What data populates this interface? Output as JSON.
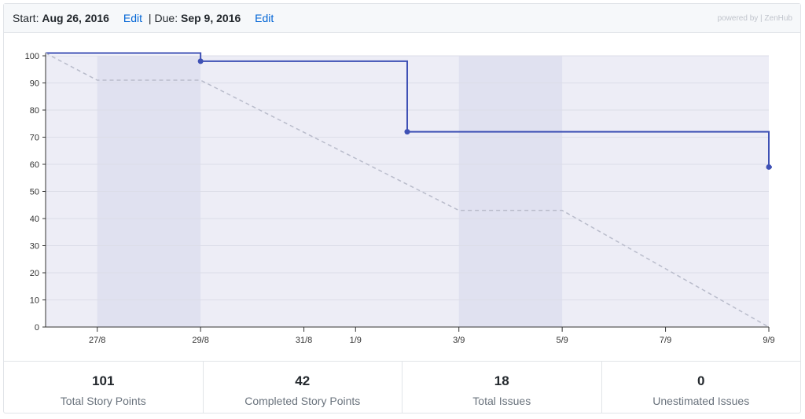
{
  "header": {
    "start_label": "Start:",
    "start_date": "Aug 26, 2016",
    "start_edit": "Edit",
    "separator": "|",
    "due_label": "Due:",
    "due_date": "Sep 9, 2016",
    "due_edit": "Edit",
    "powered_by": "powered by | ZenHub"
  },
  "chart_data": {
    "type": "line",
    "title": "",
    "xlabel": "",
    "ylabel": "",
    "x_start": "2016-08-26",
    "x_end": "2016-09-09",
    "ylim": [
      0,
      100
    ],
    "yticks": [
      0,
      10,
      20,
      30,
      40,
      50,
      60,
      70,
      80,
      90,
      100
    ],
    "x_ticks": [
      {
        "label": "27/8",
        "date": "2016-08-27"
      },
      {
        "label": "29/8",
        "date": "2016-08-29"
      },
      {
        "label": "31/8",
        "date": "2016-08-31"
      },
      {
        "label": "1/9",
        "date": "2016-09-01"
      },
      {
        "label": "3/9",
        "date": "2016-09-03"
      },
      {
        "label": "5/9",
        "date": "2016-09-05"
      },
      {
        "label": "7/9",
        "date": "2016-09-07"
      },
      {
        "label": "9/9",
        "date": "2016-09-09"
      }
    ],
    "weekend_bands": [
      {
        "from": "2016-08-27",
        "to": "2016-08-29"
      },
      {
        "from": "2016-09-03",
        "to": "2016-09-05"
      }
    ],
    "grid": true,
    "series": [
      {
        "kind": "remaining",
        "style": "step",
        "color": "#3f51b5",
        "points": [
          {
            "date": "2016-08-26",
            "value": 101
          },
          {
            "date": "2016-08-29",
            "value": 98
          },
          {
            "date": "2016-09-02",
            "value": 72
          },
          {
            "date": "2016-09-09",
            "value": 59
          }
        ]
      },
      {
        "kind": "ideal",
        "style": "dashed",
        "color": "#b9bccb",
        "points": [
          {
            "date": "2016-08-26",
            "value": 101
          },
          {
            "date": "2016-08-27",
            "value": 91
          },
          {
            "date": "2016-08-29",
            "value": 91
          },
          {
            "date": "2016-09-03",
            "value": 43
          },
          {
            "date": "2016-09-05",
            "value": 43
          },
          {
            "date": "2016-09-09",
            "value": 0
          }
        ]
      }
    ]
  },
  "stats": [
    {
      "value": "101",
      "label": "Total Story Points"
    },
    {
      "value": "42",
      "label": "Completed Story Points"
    },
    {
      "value": "18",
      "label": "Total Issues"
    },
    {
      "value": "0",
      "label": "Unestimated Issues"
    }
  ]
}
